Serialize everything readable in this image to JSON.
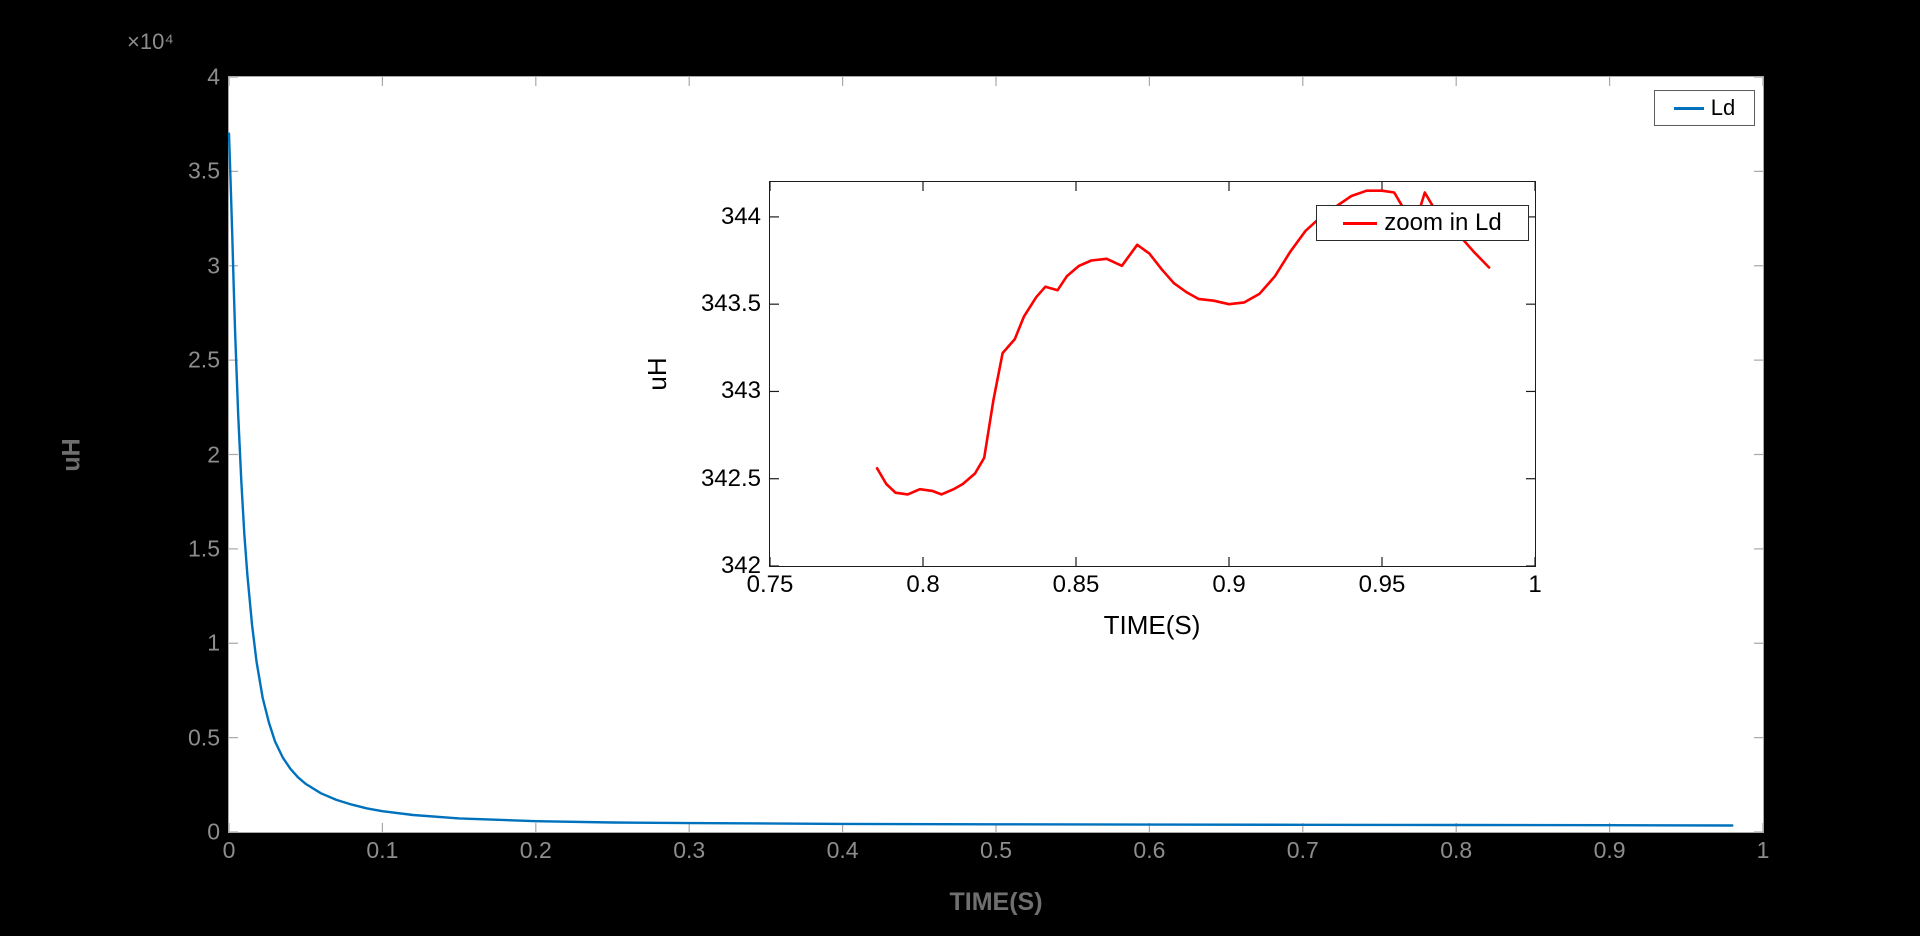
{
  "figure": {
    "background": "#000000",
    "accent_blue": "#0072bd",
    "accent_red": "#ff0000"
  },
  "chart_data": [
    {
      "name": "main",
      "type": "line",
      "title": "",
      "xlabel": "TIME(S)",
      "ylabel": "uH",
      "y_exponent": "×10⁴",
      "xlim": [
        0,
        1
      ],
      "ylim": [
        0,
        40000
      ],
      "grid": false,
      "legend_position": "top-right",
      "legend_label": "Ld",
      "axis_color": "#a8a8a8",
      "tick_len": 9,
      "x_ticks": {
        "values": [
          0,
          0.1,
          0.2,
          0.3,
          0.4,
          0.5,
          0.6,
          0.7,
          0.8,
          0.9,
          1
        ],
        "labels": [
          "0",
          "0.1",
          "0.2",
          "0.3",
          "0.4",
          "0.5",
          "0.6",
          "0.7",
          "0.8",
          "0.9",
          "1"
        ]
      },
      "y_ticks": {
        "values": [
          0,
          5000,
          10000,
          15000,
          20000,
          25000,
          30000,
          35000,
          40000
        ],
        "labels": [
          "0",
          "0.5",
          "1",
          "1.5",
          "2",
          "2.5",
          "3",
          "3.5",
          "4"
        ]
      },
      "series": [
        {
          "name": "Ld",
          "color": "#0072bd",
          "width": 2.4,
          "x": [
            0,
            0.001,
            0.002,
            0.003,
            0.004,
            0.005,
            0.006,
            0.008,
            0.01,
            0.012,
            0.015,
            0.018,
            0.022,
            0.026,
            0.03,
            0.035,
            0.04,
            0.045,
            0.05,
            0.06,
            0.07,
            0.08,
            0.09,
            0.1,
            0.12,
            0.15,
            0.2,
            0.25,
            0.3,
            0.4,
            0.5,
            0.6,
            0.7,
            0.8,
            0.9,
            0.98
          ],
          "y": [
            37000,
            34600,
            31900,
            29100,
            26500,
            24200,
            22100,
            18600,
            15800,
            13600,
            11000,
            9000,
            7100,
            5800,
            4800,
            3950,
            3350,
            2900,
            2550,
            2050,
            1700,
            1450,
            1250,
            1100,
            900,
            720,
            570,
            505,
            470,
            430,
            408,
            393,
            381,
            371,
            358,
            344
          ]
        }
      ]
    },
    {
      "name": "inset",
      "type": "line",
      "title": "",
      "xlabel": "TIME(S)",
      "ylabel": "uH",
      "xlim": [
        0.75,
        1
      ],
      "ylim": [
        342,
        344.2
      ],
      "grid": false,
      "legend_position": "top-right",
      "legend_label": "zoom in Ld",
      "axis_color": "#1c1c1c",
      "tick_len": 9,
      "x_ticks": {
        "values": [
          0.75,
          0.8,
          0.85,
          0.9,
          0.95,
          1
        ],
        "labels": [
          "0.75",
          "0.8",
          "0.85",
          "0.9",
          "0.95",
          "1"
        ]
      },
      "y_ticks": {
        "values": [
          342,
          342.5,
          343,
          343.5,
          344
        ],
        "labels": [
          "342",
          "342.5",
          "343",
          "343.5",
          "344"
        ]
      },
      "series": [
        {
          "name": "zoom in Ld",
          "color": "#ff0000",
          "width": 2.6,
          "x": [
            0.785,
            0.788,
            0.791,
            0.795,
            0.799,
            0.803,
            0.806,
            0.81,
            0.813,
            0.817,
            0.82,
            0.823,
            0.826,
            0.83,
            0.833,
            0.837,
            0.84,
            0.844,
            0.847,
            0.851,
            0.855,
            0.86,
            0.865,
            0.87,
            0.874,
            0.878,
            0.882,
            0.886,
            0.89,
            0.895,
            0.9,
            0.905,
            0.91,
            0.915,
            0.92,
            0.925,
            0.93,
            0.935,
            0.94,
            0.945,
            0.95,
            0.954,
            0.958,
            0.961,
            0.964,
            0.967,
            0.971,
            0.975,
            0.98,
            0.985
          ],
          "y": [
            342.56,
            342.47,
            342.42,
            342.41,
            342.44,
            342.43,
            342.41,
            342.44,
            342.47,
            342.53,
            342.62,
            342.95,
            343.22,
            343.3,
            343.43,
            343.54,
            343.6,
            343.58,
            343.66,
            343.72,
            343.75,
            343.76,
            343.72,
            343.84,
            343.79,
            343.7,
            343.62,
            343.57,
            343.53,
            343.52,
            343.5,
            343.51,
            343.56,
            343.66,
            343.8,
            343.92,
            344.0,
            344.06,
            344.12,
            344.15,
            344.15,
            344.14,
            344.02,
            343.97,
            344.14,
            344.05,
            343.98,
            343.9,
            343.8,
            343.71
          ]
        }
      ]
    }
  ]
}
